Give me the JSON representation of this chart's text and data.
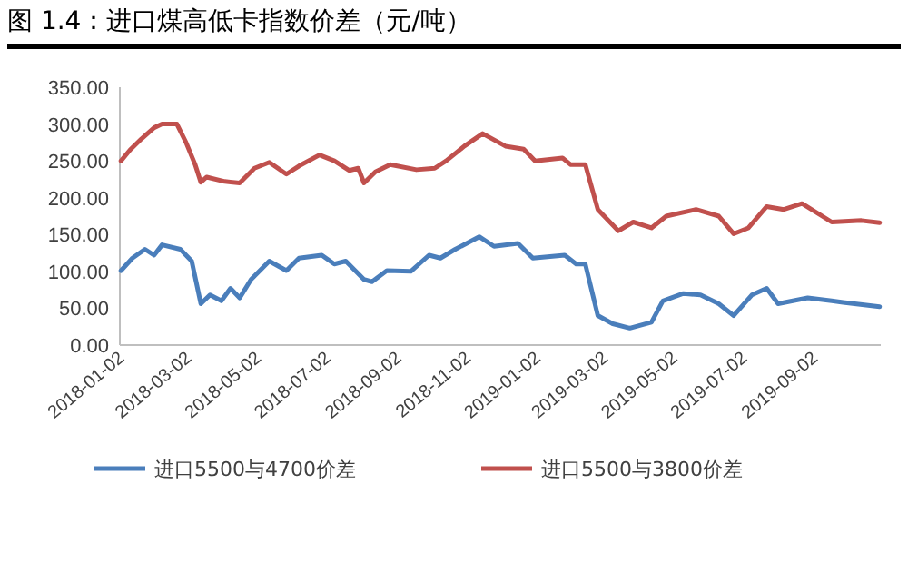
{
  "chart_data": {
    "type": "line",
    "title": "图 1.4：进口煤高低卡指数价差（元/吨）",
    "xlim": [
      "2018-01-02",
      "2019-10-31"
    ],
    "xticks": [
      "2018-01-02",
      "2018-03-02",
      "2018-05-02",
      "2018-07-02",
      "2018-09-02",
      "2018-11-02",
      "2019-01-02",
      "2019-03-02",
      "2019-05-02",
      "2019-07-02",
      "2019-09-02"
    ],
    "ylim": [
      0,
      350
    ],
    "yticks": [
      {
        "value": 0,
        "label": "0.00"
      },
      {
        "value": 50,
        "label": "50.00"
      },
      {
        "value": 100,
        "label": "100.00"
      },
      {
        "value": 150,
        "label": "150.00"
      },
      {
        "value": 200,
        "label": "200.00"
      },
      {
        "value": 250,
        "label": "250.00"
      },
      {
        "value": 300,
        "label": "300.00"
      },
      {
        "value": 350,
        "label": "350.00"
      }
    ],
    "grid": false,
    "legend": "bottom",
    "marker": "none",
    "line_style": "solid",
    "series": [
      {
        "name": "进口5500与4700价差",
        "color": "#4a7ebb",
        "x": [
          "2018-01-03",
          "2018-01-13",
          "2018-01-24",
          "2018-02-01",
          "2018-02-08",
          "2018-02-24",
          "2018-03-06",
          "2018-03-14",
          "2018-03-22",
          "2018-04-01",
          "2018-04-09",
          "2018-04-17",
          "2018-04-27",
          "2018-05-13",
          "2018-05-28",
          "2018-06-08",
          "2018-06-28",
          "2018-07-09",
          "2018-07-19",
          "2018-08-04",
          "2018-08-11",
          "2018-08-24",
          "2018-09-14",
          "2018-09-30",
          "2018-10-10",
          "2018-10-23",
          "2018-11-13",
          "2018-11-26",
          "2018-12-17",
          "2018-12-30",
          "2019-01-27",
          "2019-02-06",
          "2019-02-14",
          "2019-02-25",
          "2019-03-10",
          "2019-03-25",
          "2019-04-13",
          "2019-04-23",
          "2019-05-11",
          "2019-05-26",
          "2019-06-11",
          "2019-06-24",
          "2019-07-10",
          "2019-07-23",
          "2019-08-02",
          "2019-08-28",
          "2019-09-18",
          "2019-09-28",
          "2019-10-30"
        ],
        "values": [
          101,
          118,
          130,
          122,
          136,
          130,
          114,
          56,
          68,
          60,
          77,
          64,
          89,
          114,
          101,
          118,
          122,
          110,
          114,
          89,
          86,
          101,
          100,
          122,
          118,
          130,
          147,
          134,
          138,
          118,
          122,
          110,
          110,
          40,
          29,
          23,
          31,
          60,
          70,
          68,
          56,
          40,
          68,
          77,
          56,
          64,
          60,
          58,
          52
        ]
      },
      {
        "name": "进口5500与3800价差",
        "color": "#c0504d",
        "x": [
          "2018-01-03",
          "2018-01-11",
          "2018-01-21",
          "2018-02-01",
          "2018-02-08",
          "2018-02-21",
          "2018-03-01",
          "2018-03-09",
          "2018-03-14",
          "2018-03-19",
          "2018-04-04",
          "2018-04-17",
          "2018-04-30",
          "2018-05-13",
          "2018-05-28",
          "2018-06-08",
          "2018-06-26",
          "2018-07-09",
          "2018-07-22",
          "2018-07-30",
          "2018-08-04",
          "2018-08-14",
          "2018-08-27",
          "2018-09-19",
          "2018-10-05",
          "2018-10-15",
          "2018-10-31",
          "2018-11-16",
          "2018-12-06",
          "2018-12-22",
          "2019-01-01",
          "2019-01-25",
          "2019-02-01",
          "2019-02-14",
          "2019-02-25",
          "2019-03-15",
          "2019-03-28",
          "2019-04-13",
          "2019-04-26",
          "2019-05-22",
          "2019-06-11",
          "2019-06-24",
          "2019-07-07",
          "2019-07-23",
          "2019-08-07",
          "2019-08-23",
          "2019-09-18",
          "2019-10-14",
          "2019-10-30"
        ],
        "values": [
          250,
          265,
          280,
          295,
          300,
          300,
          275,
          245,
          221,
          228,
          222,
          220,
          240,
          248,
          232,
          243,
          258,
          250,
          237,
          240,
          220,
          235,
          245,
          238,
          240,
          250,
          270,
          287,
          270,
          266,
          250,
          254,
          245,
          245,
          184,
          155,
          167,
          159,
          175,
          184,
          175,
          151,
          159,
          188,
          184,
          192,
          167,
          169,
          166
        ]
      }
    ]
  }
}
